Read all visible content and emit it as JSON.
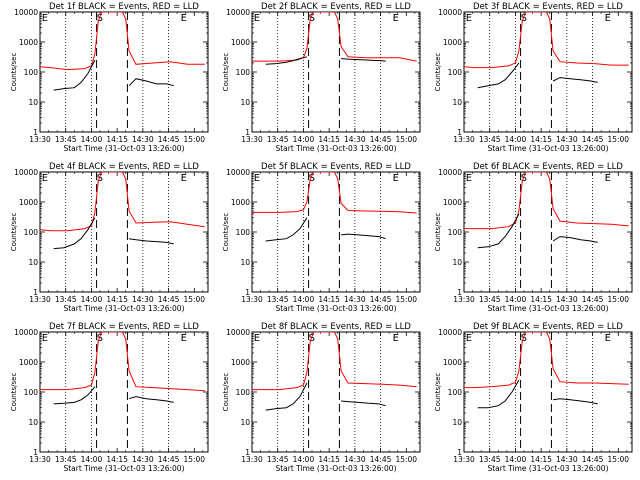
{
  "chart_data": {
    "type": "line",
    "panel_common": {
      "xlabel": "Start Time (31-Oct-03 13:26:00)",
      "ylabel": "Counts/sec",
      "x_ticks": [
        "13:30",
        "13:45",
        "14:00",
        "14:15",
        "14:30",
        "14:45",
        "15:00"
      ],
      "x_tick_minutes": [
        4,
        19,
        34,
        49,
        64,
        79,
        94
      ],
      "xlim_minutes": [
        4,
        102
      ],
      "y_scale": "log",
      "ylim": [
        1,
        10000
      ],
      "y_ticks": [
        "1",
        "10",
        "100",
        "1000",
        "10000"
      ],
      "dotted_lines_minutes": [
        19,
        34,
        64,
        79
      ],
      "dashed_lines_minutes": [
        37,
        55
      ],
      "markers": [
        {
          "label": "E",
          "minute": 5
        },
        {
          "label": "S",
          "minute": 37
        },
        {
          "label": "E",
          "minute": 86
        }
      ],
      "series_colors": {
        "events": "#000000",
        "lld": "#ff0000"
      }
    },
    "panels": [
      {
        "title": "Det 1f BLACK = Events, RED = LLD",
        "series": [
          {
            "key": "lld",
            "x": [
              4,
              10,
              20,
              30,
              34,
              36,
              38,
              40,
              52,
              54,
              56,
              60,
              70,
              80,
              90,
              100
            ],
            "y": [
              150,
              140,
              120,
              130,
              160,
              400,
              5000,
              12000,
              12000,
              6000,
              500,
              180,
              200,
              220,
              180,
              180
            ]
          },
          {
            "key": "events_pre",
            "x": [
              12,
              18,
              24,
              28,
              32,
              36
            ],
            "y": [
              25,
              28,
              30,
              45,
              90,
              250
            ]
          },
          {
            "key": "events_post",
            "x": [
              56,
              60,
              66,
              72,
              78,
              82
            ],
            "y": [
              35,
              60,
              50,
              40,
              40,
              35
            ]
          }
        ]
      },
      {
        "title": "Det 2f BLACK = Events, RED = LLD",
        "series": [
          {
            "key": "lld",
            "x": [
              4,
              10,
              20,
              30,
              34,
              36,
              38,
              40,
              52,
              54,
              56,
              60,
              70,
              80,
              90,
              100
            ],
            "y": [
              230,
              230,
              230,
              250,
              300,
              600,
              6000,
              12000,
              12000,
              6000,
              700,
              320,
              300,
              300,
              300,
              230
            ]
          },
          {
            "key": "events_pre",
            "x": [
              12,
              18,
              24,
              28,
              32,
              36
            ],
            "y": [
              180,
              190,
              210,
              240,
              280,
              320
            ]
          },
          {
            "key": "events_post",
            "x": [
              56,
              60,
              66,
              72,
              78,
              82
            ],
            "y": [
              280,
              270,
              260,
              250,
              240,
              230
            ]
          }
        ]
      },
      {
        "title": "Det 3f BLACK = Events, RED = LLD",
        "series": [
          {
            "key": "lld",
            "x": [
              4,
              10,
              20,
              30,
              34,
              36,
              38,
              40,
              52,
              54,
              56,
              60,
              70,
              80,
              90,
              100
            ],
            "y": [
              150,
              140,
              140,
              160,
              200,
              500,
              5000,
              12000,
              12000,
              6000,
              500,
              220,
              200,
              190,
              170,
              170
            ]
          },
          {
            "key": "events_pre",
            "x": [
              12,
              18,
              24,
              28,
              32,
              36
            ],
            "y": [
              30,
              35,
              40,
              55,
              100,
              200
            ]
          },
          {
            "key": "events_post",
            "x": [
              56,
              60,
              66,
              72,
              78,
              82
            ],
            "y": [
              50,
              65,
              60,
              55,
              50,
              45
            ]
          }
        ]
      },
      {
        "title": "Det 4f BLACK = Events, RED = LLD",
        "series": [
          {
            "key": "lld",
            "x": [
              4,
              10,
              20,
              30,
              34,
              36,
              38,
              40,
              52,
              54,
              56,
              60,
              70,
              80,
              90,
              100
            ],
            "y": [
              120,
              110,
              110,
              130,
              160,
              450,
              5000,
              12000,
              12000,
              6000,
              500,
              200,
              210,
              220,
              180,
              150
            ]
          },
          {
            "key": "events_pre",
            "x": [
              12,
              18,
              24,
              28,
              32,
              36
            ],
            "y": [
              28,
              30,
              40,
              60,
              120,
              300
            ]
          },
          {
            "key": "events_post",
            "x": [
              56,
              60,
              66,
              72,
              78,
              82
            ],
            "y": [
              60,
              55,
              50,
              48,
              45,
              40
            ]
          }
        ]
      },
      {
        "title": "Det 5f BLACK = Events, RED = LLD",
        "series": [
          {
            "key": "lld",
            "x": [
              4,
              10,
              20,
              30,
              34,
              36,
              38,
              40,
              52,
              54,
              56,
              60,
              70,
              80,
              90,
              100
            ],
            "y": [
              450,
              450,
              450,
              480,
              550,
              1000,
              6000,
              12000,
              12000,
              6000,
              900,
              520,
              500,
              490,
              470,
              430
            ]
          },
          {
            "key": "events_pre",
            "x": [
              12,
              18,
              24,
              28,
              32,
              36
            ],
            "y": [
              50,
              55,
              60,
              80,
              130,
              300
            ]
          },
          {
            "key": "events_post",
            "x": [
              56,
              60,
              66,
              72,
              78,
              82
            ],
            "y": [
              80,
              85,
              80,
              75,
              70,
              60
            ]
          }
        ]
      },
      {
        "title": "Det 6f BLACK = Events, RED = LLD",
        "series": [
          {
            "key": "lld",
            "x": [
              4,
              10,
              20,
              30,
              34,
              36,
              38,
              40,
              52,
              54,
              56,
              60,
              70,
              80,
              90,
              100
            ],
            "y": [
              130,
              130,
              130,
              150,
              200,
              500,
              5000,
              12000,
              12000,
              6000,
              600,
              230,
              200,
              190,
              180,
              160
            ]
          },
          {
            "key": "events_pre",
            "x": [
              12,
              18,
              24,
              28,
              32,
              36
            ],
            "y": [
              30,
              32,
              40,
              70,
              150,
              400
            ]
          },
          {
            "key": "events_post",
            "x": [
              56,
              60,
              66,
              72,
              78,
              82
            ],
            "y": [
              50,
              70,
              65,
              55,
              50,
              45
            ]
          }
        ]
      },
      {
        "title": "Det 7f BLACK = Events, RED = LLD",
        "series": [
          {
            "key": "lld",
            "x": [
              4,
              10,
              20,
              30,
              34,
              36,
              38,
              40,
              52,
              54,
              56,
              60,
              70,
              80,
              90,
              100
            ],
            "y": [
              120,
              120,
              120,
              140,
              170,
              450,
              5000,
              12000,
              12000,
              6000,
              500,
              150,
              140,
              130,
              120,
              110
            ]
          },
          {
            "key": "events_pre",
            "x": [
              12,
              18,
              24,
              28,
              32,
              36
            ],
            "y": [
              40,
              42,
              45,
              55,
              80,
              150
            ]
          },
          {
            "key": "events_post",
            "x": [
              56,
              60,
              66,
              72,
              78,
              82
            ],
            "y": [
              60,
              70,
              60,
              55,
              50,
              45
            ]
          }
        ]
      },
      {
        "title": "Det 8f BLACK = Events, RED = LLD",
        "series": [
          {
            "key": "lld",
            "x": [
              4,
              10,
              20,
              30,
              34,
              36,
              38,
              40,
              52,
              54,
              56,
              60,
              70,
              80,
              90,
              100
            ],
            "y": [
              120,
              120,
              120,
              140,
              170,
              450,
              5000,
              12000,
              12000,
              6000,
              500,
              200,
              190,
              180,
              170,
              150
            ]
          },
          {
            "key": "events_pre",
            "x": [
              12,
              18,
              24,
              28,
              32,
              36
            ],
            "y": [
              25,
              28,
              30,
              40,
              70,
              200
            ]
          },
          {
            "key": "events_post",
            "x": [
              56,
              60,
              66,
              72,
              78,
              82
            ],
            "y": [
              50,
              48,
              45,
              42,
              40,
              35
            ]
          }
        ]
      },
      {
        "title": "Det 9f BLACK = Events, RED = LLD",
        "series": [
          {
            "key": "lld",
            "x": [
              4,
              10,
              20,
              30,
              34,
              36,
              38,
              40,
              52,
              54,
              56,
              60,
              70,
              80,
              90,
              100
            ],
            "y": [
              140,
              140,
              150,
              170,
              210,
              500,
              5000,
              12000,
              12000,
              6000,
              600,
              220,
              200,
              200,
              190,
              180
            ]
          },
          {
            "key": "events_pre",
            "x": [
              12,
              18,
              24,
              28,
              32,
              36
            ],
            "y": [
              30,
              30,
              35,
              50,
              100,
              250
            ]
          },
          {
            "key": "events_post",
            "x": [
              56,
              60,
              66,
              72,
              78,
              82
            ],
            "y": [
              55,
              60,
              55,
              50,
              45,
              40
            ]
          }
        ]
      }
    ]
  }
}
